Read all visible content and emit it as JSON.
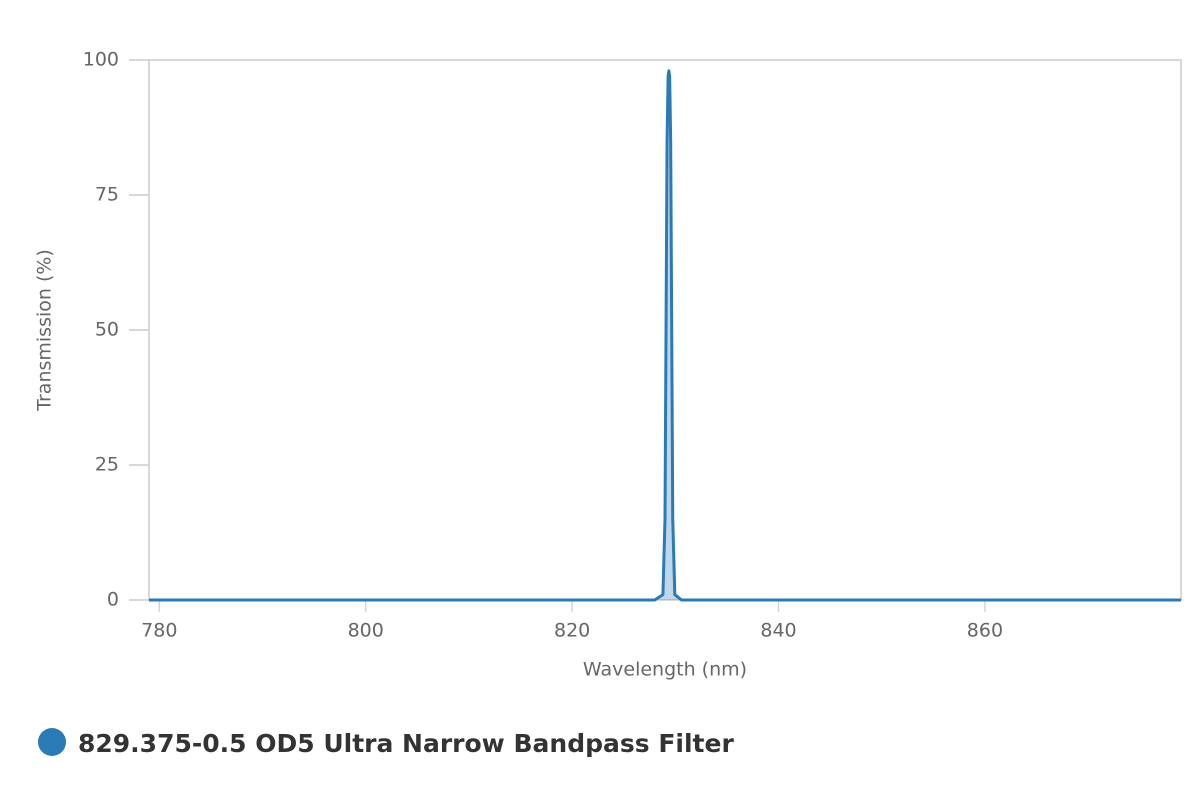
{
  "chart_data": {
    "type": "area",
    "x_label": "Wavelength (nm)",
    "y_label": "Transmission (%)",
    "x": [
      779,
      828,
      828.8,
      829.0,
      829.1,
      829.2,
      829.3,
      829.375,
      829.45,
      829.55,
      829.65,
      829.75,
      829.95,
      830.6,
      879
    ],
    "series": [
      {
        "name": "829.375-0.5 OD5 Ultra Narrow Bandpass Filter",
        "color": "#2a7ab5",
        "values": [
          0,
          0,
          1,
          15,
          50,
          85,
          97,
          98,
          97,
          85,
          50,
          15,
          1,
          0,
          0
        ]
      }
    ],
    "xlim": [
      779,
      879
    ],
    "xticks": [
      780,
      800,
      820,
      840,
      860
    ],
    "ylim": [
      0,
      100
    ],
    "yticks": [
      0,
      25,
      50,
      75,
      100
    ]
  }
}
